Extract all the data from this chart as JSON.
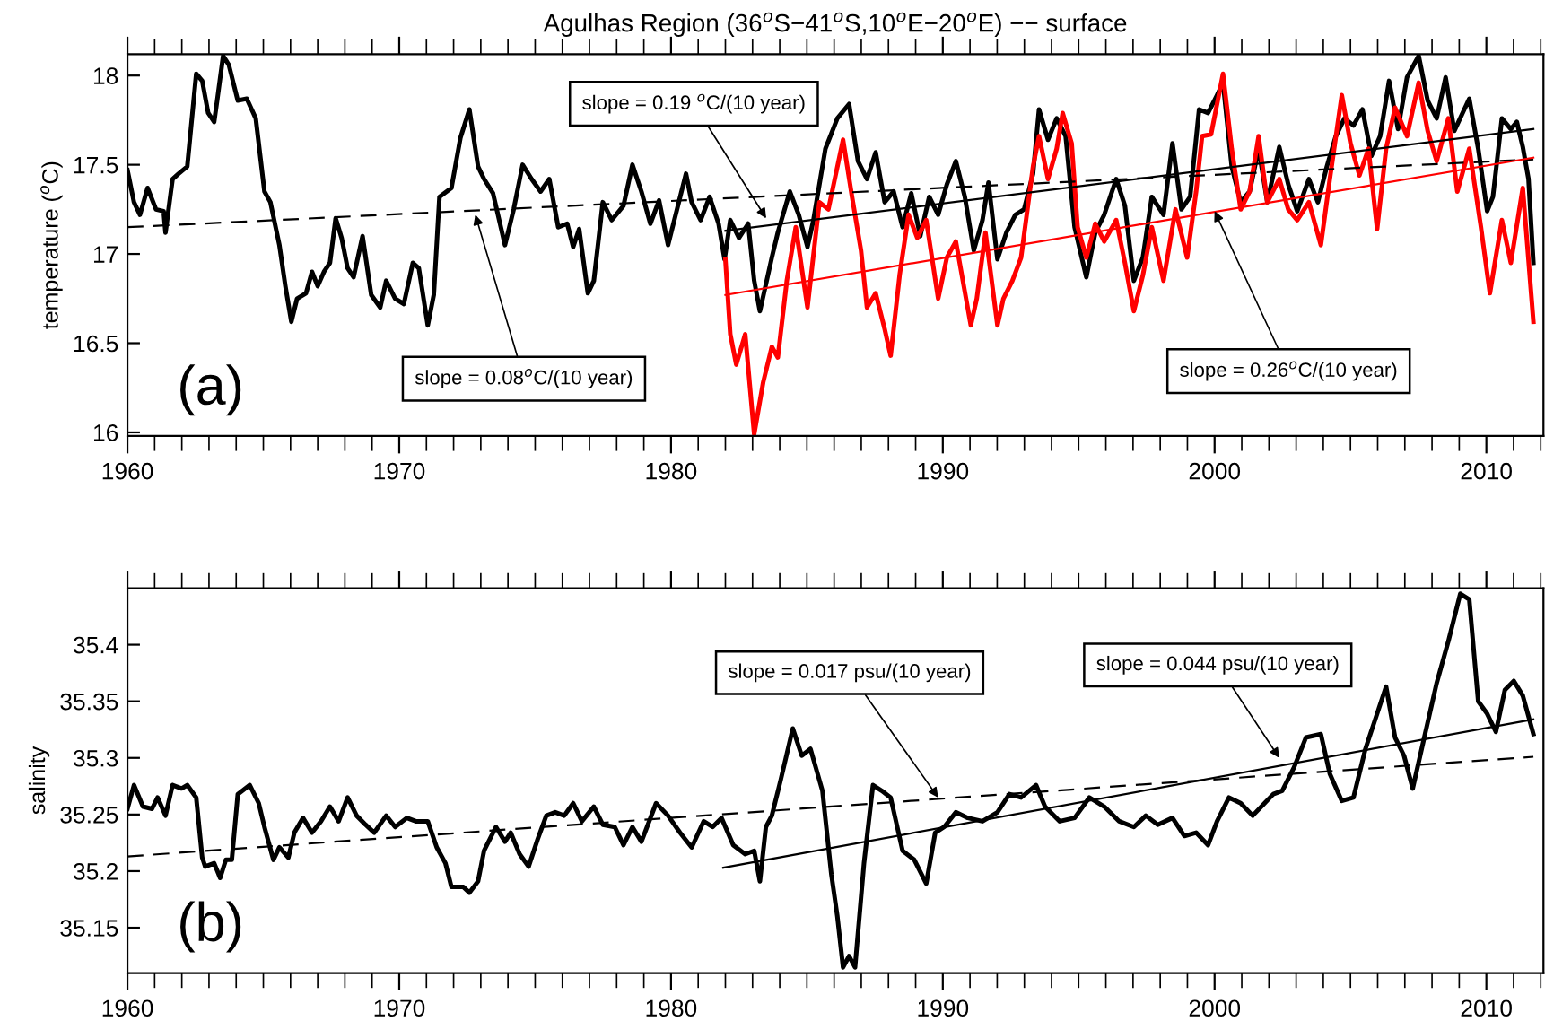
{
  "chart_data": [
    {
      "type": "line",
      "title": "Agulhas Region (36$^{o}$S−41$^{o}$S,10$^{o}$E−20$^{o}$E) −− surface",
      "ylabel": "temperature ($^{o}$C)",
      "xlim": [
        1960,
        2012.1
      ],
      "xticks": [
        1960,
        1970,
        1980,
        1990,
        2000,
        2010
      ],
      "ylim": [
        15.98,
        18.12
      ],
      "yticks": [
        16,
        16.5,
        17,
        17.5,
        18
      ],
      "series": [
        {
          "color": "#000000",
          "line_style": "solid",
          "x": [
            1960,
            1960.24,
            1960.46,
            1960.74,
            1961.05,
            1961.33,
            1961.4,
            1961.66,
            1961.88,
            1962.2,
            1962.53,
            1962.75,
            1962.97,
            1963.19,
            1963.3,
            1963.52,
            1963.73,
            1964.06,
            1964.39,
            1964.72,
            1965.04,
            1965.26,
            1965.59,
            1965.81,
            1966.03,
            1966.24,
            1966.57,
            1966.79,
            1967.0,
            1967.23,
            1967.45,
            1967.66,
            1967.88,
            1968.1,
            1968.32,
            1968.65,
            1968.97,
            1969.3,
            1969.52,
            1969.85,
            1970.17,
            1970.5,
            1970.72,
            1971.05,
            1971.27,
            1971.48,
            1971.92,
            1972.25,
            1972.58,
            1972.9,
            1973.12,
            1973.45,
            1973.89,
            1974.21,
            1974.54,
            1974.87,
            1975.2,
            1975.52,
            1975.85,
            1976.18,
            1976.4,
            1976.62,
            1976.94,
            1977.16,
            1977.49,
            1977.82,
            1978.25,
            1978.58,
            1978.91,
            1979.24,
            1979.56,
            1979.89,
            1980.22,
            1980.55,
            1980.76,
            1981.09,
            1981.42,
            1981.75,
            1981.97,
            1982.18,
            1982.5,
            1982.84,
            1983.06,
            1983.27,
            1983.71,
            1983.93,
            1984.37,
            1984.7,
            1985.02,
            1985.24,
            1985.68,
            1986.12,
            1986.55,
            1986.88,
            1987.21,
            1987.53,
            1987.86,
            1988.19,
            1988.52,
            1988.84,
            1989.17,
            1989.5,
            1989.83,
            1990.15,
            1990.48,
            1990.81,
            1991.14,
            1991.46,
            1991.68,
            1992.01,
            1992.34,
            1992.67,
            1992.99,
            1993.32,
            1993.54,
            1993.87,
            1994.19,
            1994.52,
            1994.85,
            1995.28,
            1995.61,
            1995.94,
            1996.38,
            1996.7,
            1997.03,
            1997.36,
            1997.69,
            1998.12,
            1998.45,
            1998.78,
            1999.1,
            1999.43,
            1999.76,
            2000.09,
            2000.31,
            2000.63,
            2000.96,
            2001.29,
            2001.62,
            2001.94,
            2002.38,
            2002.71,
            2003.04,
            2003.47,
            2003.8,
            2004.13,
            2004.46,
            2004.78,
            2005.11,
            2005.44,
            2005.77,
            2006.09,
            2006.42,
            2006.75,
            2007.08,
            2007.51,
            2007.84,
            2008.17,
            2008.5,
            2008.82,
            2009.37,
            2009.7,
            2010.03,
            2010.24,
            2010.57,
            2010.9,
            2011.12,
            2011.34,
            2011.55,
            2011.73
          ],
          "values": [
            17.47,
            17.29,
            17.22,
            17.37,
            17.25,
            17.24,
            17.12,
            17.42,
            17.45,
            17.49,
            18.01,
            17.97,
            17.79,
            17.74,
            17.86,
            18.11,
            18.06,
            17.86,
            17.87,
            17.76,
            17.35,
            17.29,
            17.05,
            16.82,
            16.62,
            16.75,
            16.78,
            16.9,
            16.82,
            16.9,
            16.95,
            17.2,
            17.09,
            16.92,
            16.87,
            17.1,
            16.77,
            16.7,
            16.85,
            16.75,
            16.72,
            16.95,
            16.92,
            16.6,
            16.77,
            17.32,
            17.37,
            17.65,
            17.81,
            17.49,
            17.42,
            17.34,
            17.05,
            17.25,
            17.5,
            17.42,
            17.35,
            17.42,
            17.15,
            17.17,
            17.04,
            17.14,
            16.78,
            16.85,
            17.29,
            17.19,
            17.27,
            17.5,
            17.35,
            17.17,
            17.3,
            17.05,
            17.25,
            17.45,
            17.29,
            17.19,
            17.32,
            17.17,
            16.97,
            17.19,
            17.09,
            17.17,
            16.85,
            16.68,
            16.98,
            17.12,
            17.35,
            17.22,
            17.04,
            17.19,
            17.59,
            17.76,
            17.84,
            17.52,
            17.42,
            17.57,
            17.29,
            17.35,
            17.15,
            17.34,
            17.1,
            17.32,
            17.22,
            17.39,
            17.52,
            17.32,
            17.02,
            17.19,
            17.4,
            16.97,
            17.12,
            17.22,
            17.25,
            17.45,
            17.81,
            17.64,
            17.76,
            17.66,
            17.15,
            16.87,
            17.12,
            17.22,
            17.42,
            17.27,
            16.85,
            16.98,
            17.32,
            17.22,
            17.62,
            17.25,
            17.32,
            17.81,
            17.79,
            17.89,
            17.96,
            17.49,
            17.29,
            17.35,
            17.59,
            17.29,
            17.6,
            17.39,
            17.24,
            17.42,
            17.29,
            17.49,
            17.66,
            17.76,
            17.72,
            17.81,
            17.55,
            17.66,
            17.97,
            17.7,
            17.99,
            18.11,
            17.86,
            17.76,
            17.99,
            17.69,
            17.87,
            17.59,
            17.24,
            17.32,
            17.76,
            17.7,
            17.74,
            17.6,
            17.42,
            16.95
          ]
        },
        {
          "color": "#ff0000",
          "line_style": "solid",
          "x": [
            1982.0,
            1982.18,
            1982.4,
            1982.73,
            1983.06,
            1983.39,
            1983.71,
            1983.93,
            1984.26,
            1984.59,
            1985.02,
            1985.46,
            1985.79,
            1986.33,
            1986.66,
            1986.99,
            1987.21,
            1987.53,
            1987.86,
            1988.08,
            1988.41,
            1988.74,
            1989.06,
            1989.39,
            1989.83,
            1990.15,
            1990.48,
            1991.03,
            1991.25,
            1991.57,
            1992.01,
            1992.23,
            1992.56,
            1992.88,
            1993.32,
            1993.54,
            1993.87,
            1994.19,
            1994.41,
            1994.74,
            1994.96,
            1995.28,
            1995.61,
            1995.94,
            1996.38,
            1996.7,
            1997.03,
            1997.36,
            1997.69,
            1998.12,
            1998.56,
            1998.99,
            1999.32,
            1999.54,
            1999.87,
            2000.31,
            2000.63,
            2000.96,
            2001.29,
            2001.62,
            2001.94,
            2002.38,
            2002.71,
            2003.04,
            2003.47,
            2003.91,
            2004.24,
            2004.68,
            2005.0,
            2005.33,
            2005.66,
            2005.98,
            2006.31,
            2006.64,
            2007.08,
            2007.51,
            2007.84,
            2008.17,
            2008.6,
            2008.93,
            2009.37,
            2009.8,
            2010.13,
            2010.57,
            2010.9,
            2011.34,
            2011.73
          ],
          "values": [
            16.97,
            16.55,
            16.38,
            16.55,
            15.99,
            16.28,
            16.48,
            16.42,
            16.85,
            17.15,
            16.7,
            17.29,
            17.25,
            17.64,
            17.32,
            17.02,
            16.7,
            16.78,
            16.58,
            16.43,
            16.88,
            17.22,
            17.09,
            17.19,
            16.75,
            16.98,
            17.07,
            16.6,
            16.75,
            17.12,
            16.6,
            16.75,
            16.85,
            16.98,
            17.49,
            17.66,
            17.42,
            17.59,
            17.79,
            17.62,
            17.15,
            16.98,
            17.17,
            17.07,
            17.19,
            16.95,
            16.68,
            16.88,
            17.15,
            16.85,
            17.25,
            16.98,
            17.35,
            17.66,
            17.67,
            18.01,
            17.59,
            17.25,
            17.35,
            17.66,
            17.29,
            17.42,
            17.25,
            17.19,
            17.29,
            17.05,
            17.42,
            17.89,
            17.62,
            17.44,
            17.59,
            17.14,
            17.59,
            17.82,
            17.66,
            17.96,
            17.69,
            17.52,
            17.76,
            17.35,
            17.59,
            17.15,
            16.78,
            17.19,
            16.95,
            17.37,
            16.62
          ]
        },
        {
          "color": "#000000",
          "line_style": "dashed",
          "x": [
            1960,
            2011.73
          ],
          "values": [
            17.15,
            17.53
          ]
        },
        {
          "color": "#000000",
          "line_style": "solid",
          "x": [
            1982.0,
            2011.73
          ],
          "values": [
            17.13,
            17.7
          ]
        },
        {
          "color": "#ff0000",
          "line_style": "solid",
          "x": [
            1982.0,
            2011.73
          ],
          "values": [
            16.77,
            17.54
          ]
        }
      ],
      "annotations": [
        "(a)",
        {
          "text": "slope = 0.19 $^{o}$C/(10 year)",
          "x": 1983.5,
          "y": 17.2
        },
        {
          "text": "slope = 0.08$^{o}$C/(10 year)",
          "x": 1972.8,
          "y": 17.22
        },
        {
          "text": "slope = 0.26$^{o}$C/(10 year)",
          "x": 2000.0,
          "y": 17.24
        }
      ]
    },
    {
      "type": "line",
      "ylabel": "salinity",
      "xlim": [
        1960,
        2012.1
      ],
      "xticks": [
        1960,
        1970,
        1980,
        1990,
        2000,
        2010
      ],
      "ylim": [
        35.11,
        35.45
      ],
      "yticks": [
        35.15,
        35.2,
        35.25,
        35.3,
        35.35,
        35.4
      ],
      "series": [
        {
          "color": "#000000",
          "line_style": "solid",
          "x": [
            1960,
            1960.24,
            1960.57,
            1960.9,
            1961.11,
            1961.4,
            1961.66,
            1961.99,
            1962.2,
            1962.53,
            1962.75,
            1962.86,
            1963.19,
            1963.41,
            1963.62,
            1963.84,
            1964.06,
            1964.5,
            1964.83,
            1965.04,
            1965.37,
            1965.59,
            1965.92,
            1966.14,
            1966.46,
            1966.79,
            1967.12,
            1967.45,
            1967.77,
            1968.1,
            1968.43,
            1968.76,
            1969.08,
            1969.52,
            1969.85,
            1970.28,
            1970.61,
            1971.05,
            1971.38,
            1971.7,
            1971.92,
            1972.36,
            1972.58,
            1972.9,
            1973.12,
            1973.56,
            1973.89,
            1974.1,
            1974.43,
            1974.76,
            1975.09,
            1975.41,
            1975.74,
            1976.07,
            1976.4,
            1976.72,
            1977.16,
            1977.49,
            1977.93,
            1978.25,
            1978.58,
            1978.91,
            1979.45,
            1979.89,
            1980.33,
            1980.76,
            1981.2,
            1981.53,
            1981.86,
            1982.29,
            1982.73,
            1983.06,
            1983.27,
            1983.49,
            1983.71,
            1984.04,
            1984.48,
            1984.81,
            1985.13,
            1985.57,
            1985.9,
            1986.12,
            1986.33,
            1986.55,
            1986.77,
            1987.1,
            1987.43,
            1987.75,
            1988.08,
            1988.52,
            1988.95,
            1989.39,
            1989.72,
            1990.05,
            1990.48,
            1990.92,
            1991.46,
            1992.01,
            1992.45,
            1992.88,
            1993.43,
            1993.76,
            1994.3,
            1994.85,
            1995.39,
            1995.94,
            1996.49,
            1997.03,
            1997.47,
            1997.91,
            1998.45,
            1998.89,
            1999.32,
            1999.76,
            2000.09,
            2000.53,
            2000.96,
            2001.4,
            2001.84,
            2002.16,
            2002.49,
            2002.93,
            2003.36,
            2003.91,
            2004.24,
            2004.68,
            2005.11,
            2005.55,
            2005.98,
            2006.31,
            2006.64,
            2006.97,
            2007.29,
            2007.62,
            2008.17,
            2008.6,
            2009.04,
            2009.37,
            2009.7,
            2010.03,
            2010.35,
            2010.68,
            2011.01,
            2011.34,
            2011.73
          ],
          "values": [
            35.255,
            35.276,
            35.257,
            35.255,
            35.265,
            35.249,
            35.276,
            35.273,
            35.276,
            35.265,
            35.212,
            35.204,
            35.207,
            35.194,
            35.21,
            35.21,
            35.268,
            35.276,
            35.26,
            35.239,
            35.21,
            35.221,
            35.212,
            35.234,
            35.247,
            35.234,
            35.244,
            35.257,
            35.244,
            35.265,
            35.249,
            35.241,
            35.234,
            35.249,
            35.239,
            35.247,
            35.244,
            35.244,
            35.221,
            35.207,
            35.186,
            35.186,
            35.181,
            35.191,
            35.218,
            35.239,
            35.226,
            35.234,
            35.215,
            35.204,
            35.228,
            35.249,
            35.252,
            35.249,
            35.26,
            35.244,
            35.257,
            35.241,
            35.239,
            35.223,
            35.239,
            35.226,
            35.26,
            35.249,
            35.234,
            35.221,
            35.244,
            35.239,
            35.247,
            35.223,
            35.215,
            35.218,
            35.191,
            35.239,
            35.249,
            35.281,
            35.326,
            35.302,
            35.308,
            35.271,
            35.197,
            35.16,
            35.115,
            35.125,
            35.115,
            35.207,
            35.276,
            35.271,
            35.265,
            35.218,
            35.21,
            35.189,
            35.234,
            35.239,
            35.252,
            35.247,
            35.244,
            35.252,
            35.268,
            35.265,
            35.276,
            35.257,
            35.244,
            35.247,
            35.265,
            35.257,
            35.244,
            35.239,
            35.249,
            35.241,
            35.247,
            35.231,
            35.234,
            35.223,
            35.244,
            35.265,
            35.26,
            35.249,
            35.26,
            35.268,
            35.271,
            35.292,
            35.318,
            35.321,
            35.286,
            35.262,
            35.265,
            35.308,
            35.339,
            35.363,
            35.318,
            35.302,
            35.273,
            35.308,
            35.366,
            35.403,
            35.445,
            35.44,
            35.35,
            35.339,
            35.323,
            35.36,
            35.368,
            35.355,
            35.321
          ]
        },
        {
          "color": "#000000",
          "line_style": "dashed",
          "x": [
            1960,
            2011.73
          ],
          "values": [
            35.213,
            35.301
          ]
        },
        {
          "color": "#000000",
          "line_style": "solid",
          "x": [
            1981.92,
            2011.73
          ],
          "values": [
            35.203,
            35.334
          ]
        }
      ],
      "annotations": [
        "(b)",
        {
          "text": "slope = 0.017 psu/(10 year)",
          "x": 1989.83,
          "y": 35.265
        },
        {
          "text": "slope = 0.044 psu/(10 year)",
          "x": 2002.38,
          "y": 35.3
        }
      ]
    }
  ]
}
